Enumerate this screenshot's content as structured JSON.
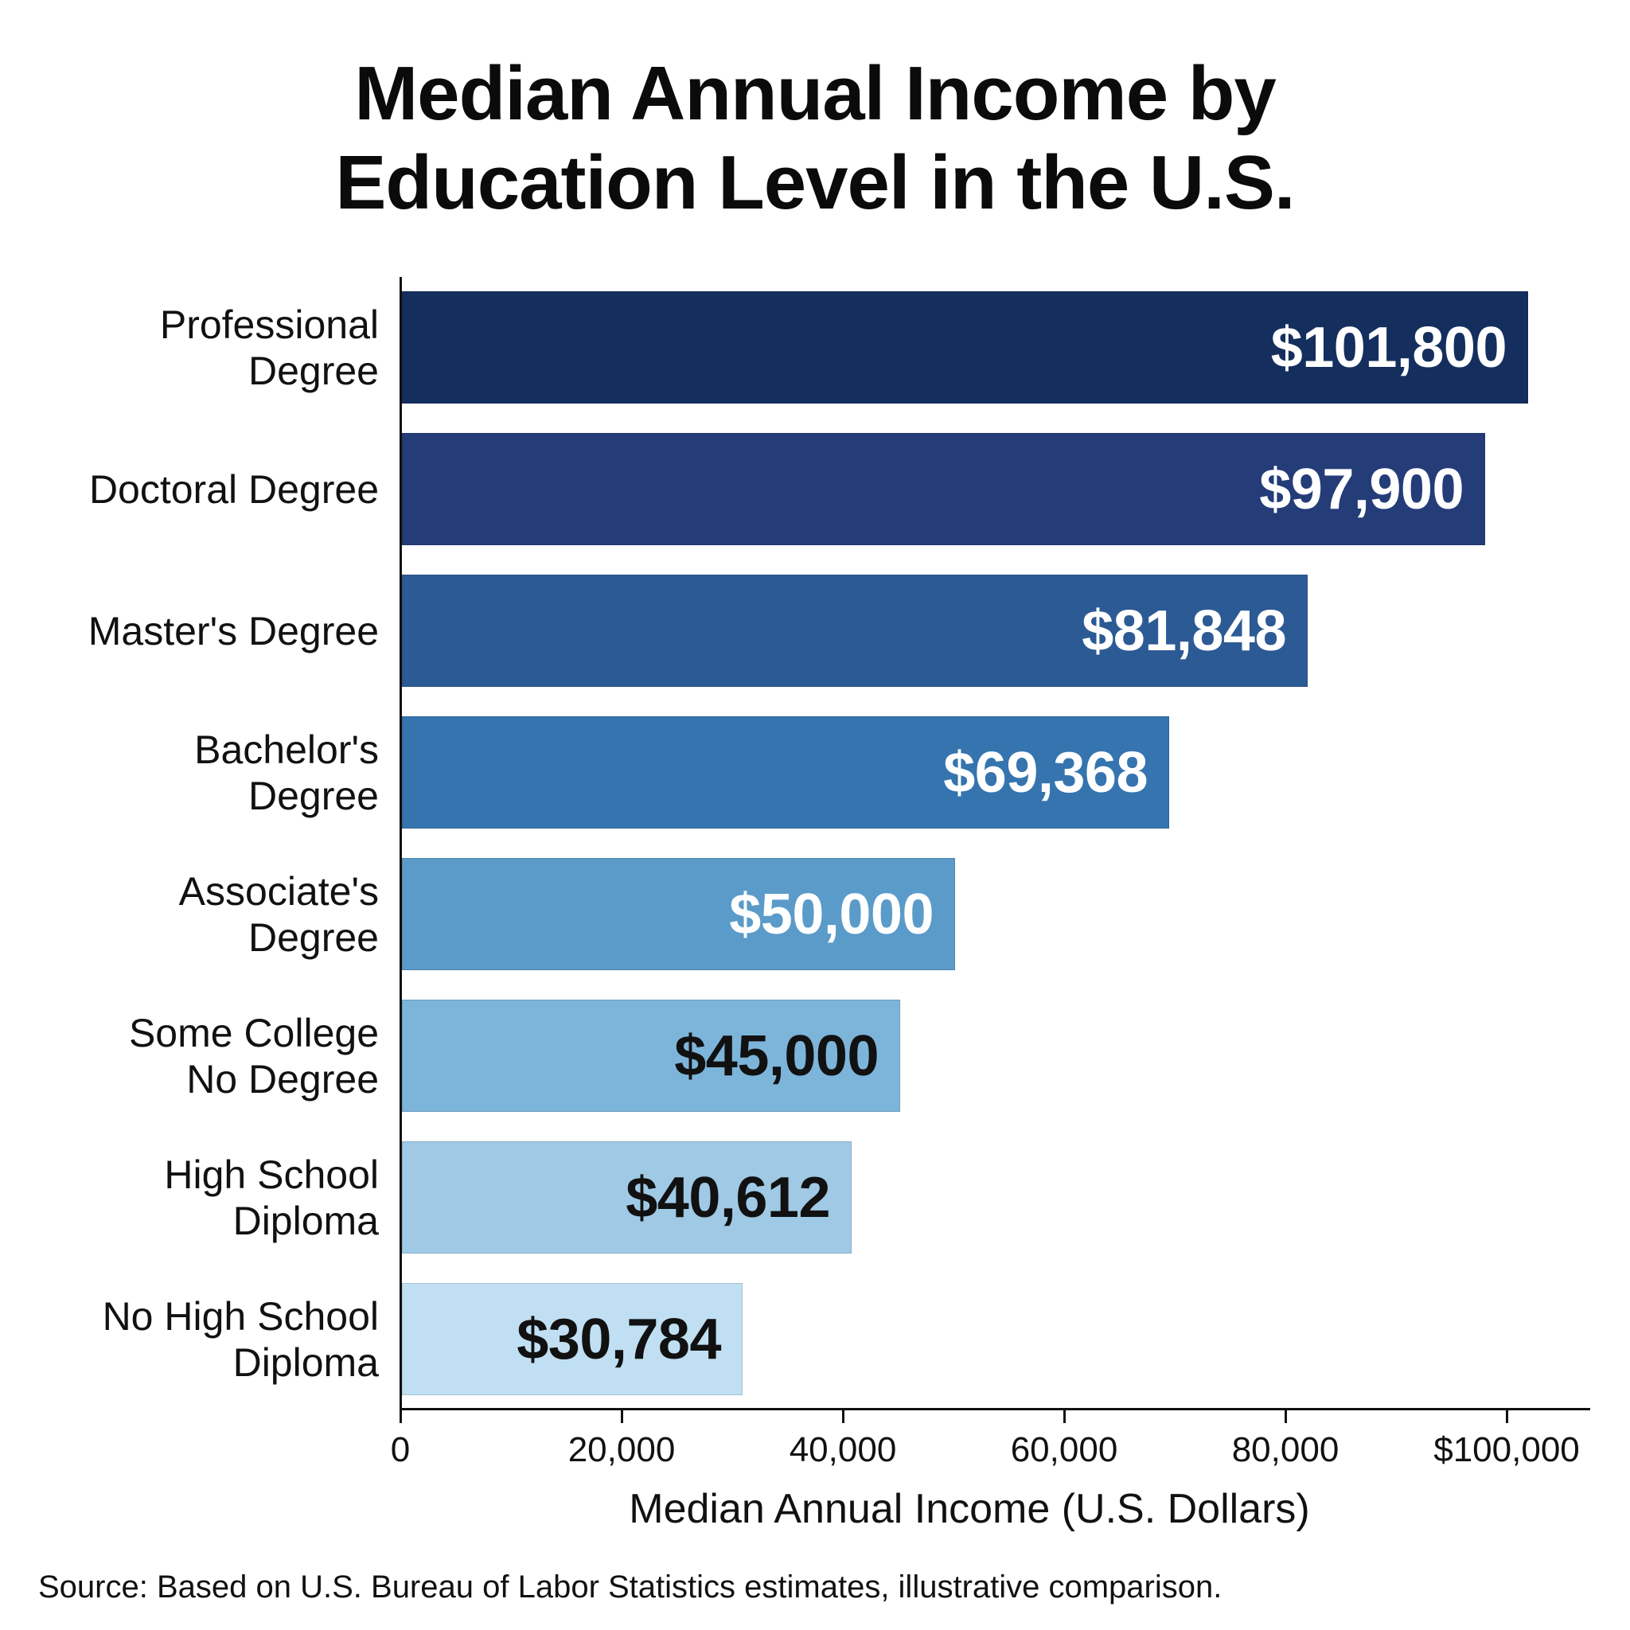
{
  "title_lines": [
    "Median Annual Income by",
    "Education Level in the U.S."
  ],
  "source": "Source: Based on U.S. Bureau of Labor Statistics estimates, illustrative comparison.",
  "x_axis": {
    "label": "Median Annual Income (U.S. Dollars)",
    "ticks": [
      {
        "value": 0,
        "label": "0"
      },
      {
        "value": 20000,
        "label": "20,000"
      },
      {
        "value": 40000,
        "label": "40,000"
      },
      {
        "value": 60000,
        "label": "60,000"
      },
      {
        "value": 80000,
        "label": "80,000"
      },
      {
        "value": 100000,
        "label": "$100,000"
      }
    ]
  },
  "bars": [
    {
      "category": "Professional Degree",
      "label_lines": [
        "Professional",
        "Degree"
      ],
      "value_label": "$101,800",
      "color": "#142f5e",
      "text_color": "#ffffff"
    },
    {
      "category": "Doctoral Degree",
      "label_lines": [
        "Doctoral Degree"
      ],
      "value_label": "$97,900",
      "color": "#243d78",
      "text_color": "#ffffff"
    },
    {
      "category": "Master's Degree",
      "label_lines": [
        "Master's Degree"
      ],
      "value_label": "$81,848",
      "color": "#2c5a94",
      "text_color": "#ffffff"
    },
    {
      "category": "Bachelor's Degree",
      "label_lines": [
        "Bachelor's",
        "Degree"
      ],
      "value_label": "$69,368",
      "color": "#3574ae",
      "text_color": "#ffffff"
    },
    {
      "category": "Associate's Degree",
      "label_lines": [
        "Associate's",
        "Degree"
      ],
      "value_label": "$50,000",
      "color": "#5a9bc9",
      "text_color": "#ffffff"
    },
    {
      "category": "Some College No Degree",
      "label_lines": [
        "Some College",
        "No Degree"
      ],
      "value_label": "$45,000",
      "color": "#7db4da",
      "text_color": "#111111"
    },
    {
      "category": "High School Diploma",
      "label_lines": [
        "High School",
        "Diploma"
      ],
      "value_label": "$40,612",
      "color": "#9fc9e4",
      "text_color": "#111111"
    },
    {
      "category": "No High School Diploma",
      "label_lines": [
        "No High School",
        "Diploma"
      ],
      "value_label": "$30,784",
      "color": "#c0dff2",
      "text_color": "#111111"
    }
  ],
  "chart_data": {
    "type": "bar",
    "orientation": "horizontal",
    "title": "Median Annual Income by Education Level in the U.S.",
    "xlabel": "Median Annual Income (U.S. Dollars)",
    "ylabel": "",
    "categories": [
      "Professional Degree",
      "Doctoral Degree",
      "Master's Degree",
      "Bachelor's Degree",
      "Associate's Degree",
      "Some College No Degree",
      "High School Diploma",
      "No High School Diploma"
    ],
    "values": [
      101800,
      97900,
      81848,
      69368,
      50000,
      45000,
      40612,
      30784
    ],
    "data_labels": [
      "$101,800",
      "$97,900",
      "$81,848",
      "$69,368",
      "$50,000",
      "$45,000",
      "$40,612",
      "$30,784"
    ],
    "xlim": [
      0,
      107000
    ],
    "x_ticks": [
      0,
      20000,
      40000,
      60000,
      80000,
      100000
    ],
    "x_tick_labels": [
      "0",
      "20,000",
      "40,000",
      "60,000",
      "80,000",
      "$100,000"
    ],
    "grid": false,
    "legend": null,
    "colors": [
      "#142f5e",
      "#243d78",
      "#2c5a94",
      "#3574ae",
      "#5a9bc9",
      "#7db4da",
      "#9fc9e4",
      "#c0dff2"
    ],
    "source": "Source: Based on U.S. Bureau of Labor Statistics estimates, illustrative comparison."
  }
}
